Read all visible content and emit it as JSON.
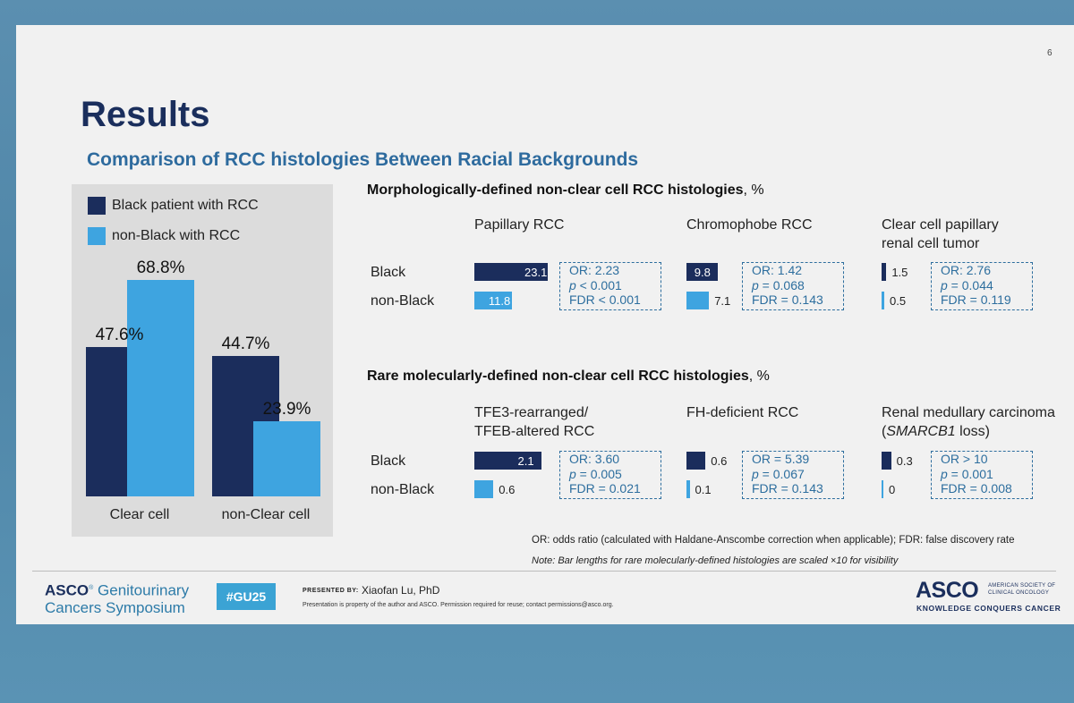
{
  "slide": {
    "number": "6",
    "title": "Results",
    "subtitle": "Comparison of RCC histologies Between Racial Backgrounds"
  },
  "chart_data": [
    {
      "type": "bar",
      "categories": [
        "Clear cell",
        "non-Clear cell"
      ],
      "series": [
        {
          "name": "Black patient with RCC",
          "color": "#1b2d5c",
          "values": [
            47.6,
            44.7
          ],
          "labels": [
            "47.6%",
            "44.7%"
          ]
        },
        {
          "name": "non-Black with RCC",
          "color": "#3ea4e0",
          "values": [
            68.8,
            23.9
          ],
          "labels": [
            "68.8%",
            "23.9%"
          ]
        }
      ],
      "ylim": [
        0,
        75
      ]
    },
    {
      "type": "bar",
      "orientation": "horizontal",
      "title": "Morphologically-defined non-clear cell RCC histologies",
      "title_suffix": ", %",
      "rows": [
        "Black",
        "non-Black"
      ],
      "max_value": 23.1,
      "groups": [
        {
          "name": [
            "Papillary RCC"
          ],
          "black": 23.1,
          "nonblack": 11.8,
          "black_label": "23.1",
          "nonblack_label": "11.8",
          "stats": [
            {
              "pre": "OR: 2.23"
            },
            {
              "p": "p",
              "pre": " < 0.001"
            },
            {
              "pre": "FDR < 0.001"
            }
          ]
        },
        {
          "name": [
            "Chromophobe RCC"
          ],
          "black": 9.8,
          "nonblack": 7.1,
          "black_label": "9.8",
          "nonblack_label": "7.1",
          "stats": [
            {
              "pre": "OR: 1.42"
            },
            {
              "p": "p",
              "pre": " = 0.068"
            },
            {
              "pre": "FDR = 0.143"
            }
          ]
        },
        {
          "name": [
            "Clear cell papillary",
            "renal cell tumor"
          ],
          "black": 1.5,
          "nonblack": 0.5,
          "black_label": "1.5",
          "nonblack_label": "0.5",
          "stats": [
            {
              "pre": "OR: 2.76"
            },
            {
              "p": "p",
              "pre": " = 0.044"
            },
            {
              "pre": "FDR = 0.119"
            }
          ]
        }
      ]
    },
    {
      "type": "bar",
      "orientation": "horizontal",
      "title": "Rare molecularly-defined non-clear cell RCC histologies",
      "title_suffix": ", %",
      "rows": [
        "Black",
        "non-Black"
      ],
      "scale_factor": 10,
      "groups": [
        {
          "name": [
            "TFE3-rearranged/",
            "TFEB-altered RCC"
          ],
          "black": 2.1,
          "nonblack": 0.6,
          "black_label": "2.1",
          "nonblack_label": "0.6",
          "stats": [
            {
              "pre": "OR: 3.60"
            },
            {
              "p": "p",
              "pre": " = 0.005"
            },
            {
              "pre": "FDR = 0.021"
            }
          ]
        },
        {
          "name": [
            "FH-deficient RCC"
          ],
          "black": 0.6,
          "nonblack": 0.1,
          "black_label": "0.6",
          "nonblack_label": "0.1",
          "stats": [
            {
              "pre": "OR = 5.39"
            },
            {
              "p": "p",
              "pre": " = 0.067"
            },
            {
              "pre": "FDR = 0.143"
            }
          ]
        },
        {
          "name": [
            "Renal medullary carcinoma",
            "(SMARCB1 loss)"
          ],
          "black": 0.3,
          "nonblack": 0,
          "black_label": "0.3",
          "nonblack_label": "0",
          "stats": [
            {
              "pre": "OR > 10"
            },
            {
              "p": "p",
              "pre": " = 0.001"
            },
            {
              "pre": "FDR = 0.008"
            }
          ]
        }
      ]
    }
  ],
  "footnotes": {
    "definitions": "OR: odds ratio (calculated with Haldane-Anscombe correction when applicable); FDR: false discovery rate",
    "note": "Note: Bar lengths for rare molecularly-defined histologies are scaled ×10 for visibility"
  },
  "footer": {
    "logo_asco": "ASCO",
    "logo_line1": "Genitourinary",
    "logo_line2": "Cancers Symposium",
    "hashtag": "#GU25",
    "presented_by": "PRESENTED BY:",
    "presenter": "Xiaofan Lu, PhD",
    "property_note": "Presentation is property of the author and ASCO. Permission required for reuse; contact permissions@asco.org.",
    "asco_logo": "ASCO",
    "asco_society": [
      "AMERICAN SOCIETY OF",
      "CLINICAL ONCOLOGY"
    ],
    "asco_tagline": "KNOWLEDGE CONQUERS CANCER"
  }
}
